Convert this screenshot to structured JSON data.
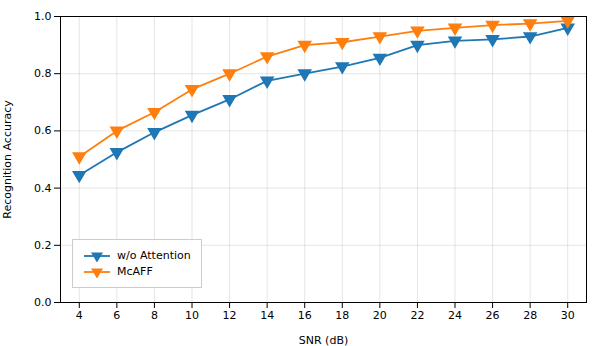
{
  "chart_data": {
    "type": "line",
    "xlabel": "SNR (dB)",
    "ylabel": "Recognition Accuracy",
    "x": [
      4,
      6,
      8,
      10,
      12,
      14,
      16,
      18,
      20,
      22,
      24,
      26,
      28,
      30
    ],
    "series": [
      {
        "name": "w/o Attention",
        "color": "#1f77b4",
        "marker": "triangle_down",
        "values": [
          0.445,
          0.525,
          0.595,
          0.655,
          0.71,
          0.775,
          0.8,
          0.825,
          0.855,
          0.9,
          0.915,
          0.92,
          0.93,
          0.96
        ]
      },
      {
        "name": "McAFF",
        "color": "#ff7f0e",
        "marker": "triangle_down",
        "values": [
          0.51,
          0.6,
          0.665,
          0.745,
          0.8,
          0.86,
          0.9,
          0.91,
          0.93,
          0.95,
          0.96,
          0.97,
          0.975,
          0.985
        ]
      }
    ],
    "xlim": [
      3,
      31
    ],
    "xticks": [
      4,
      6,
      8,
      10,
      12,
      14,
      16,
      18,
      20,
      22,
      24,
      26,
      28,
      30
    ],
    "ylim": [
      0.0,
      1.0
    ],
    "yticks": [
      {
        "value": 0.0,
        "label": "0.0"
      },
      0.2,
      0.4,
      0.6,
      0.8,
      {
        "value": 1.0,
        "label": "1.0"
      }
    ],
    "grid": true,
    "legend": "lower left"
  }
}
